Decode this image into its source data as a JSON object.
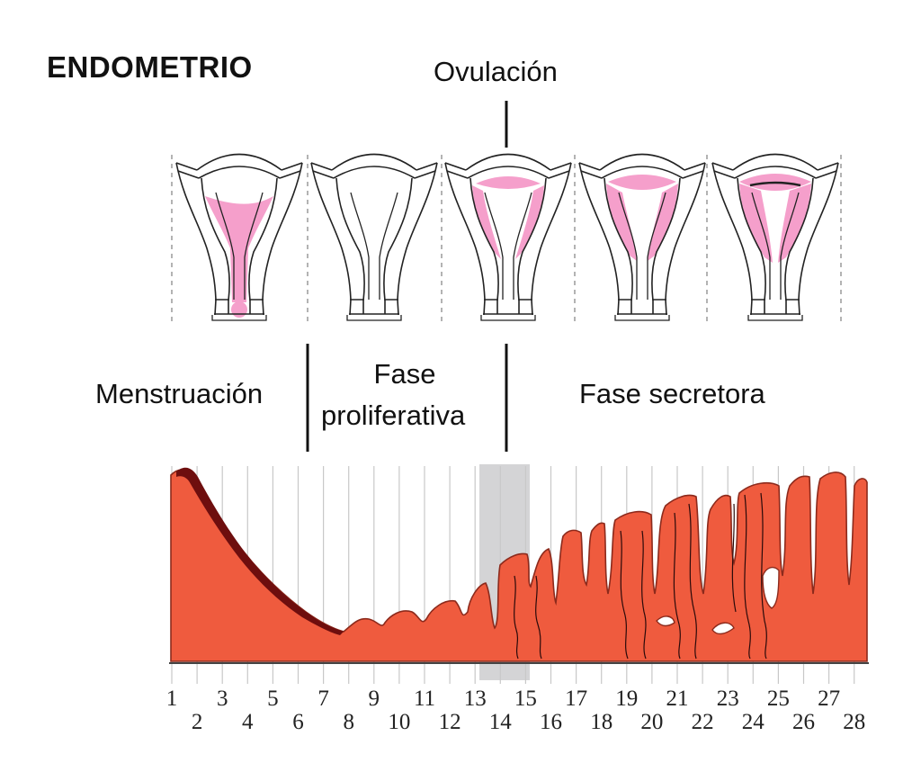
{
  "title": "ENDOMETRIO",
  "ovulation_label": "Ovulación",
  "phases": {
    "menstruation": "Menstruación",
    "proliferative_line1": "Fase",
    "proliferative_line2": "proliferativa",
    "secretory": "Fase secretora"
  },
  "days": [
    "1",
    "2",
    "3",
    "4",
    "5",
    "6",
    "7",
    "8",
    "9",
    "10",
    "11",
    "12",
    "13",
    "14",
    "15",
    "16",
    "17",
    "18",
    "19",
    "20",
    "21",
    "22",
    "23",
    "24",
    "25",
    "26",
    "27",
    "28"
  ],
  "ovulation_days": [
    13,
    14
  ],
  "colors": {
    "endometrium": "#ef5b3e",
    "endometrium_outline": "#8c2a1c",
    "menstrual_blood": "#6e0e0e",
    "uterine_lining_pink": "#f59fcb",
    "ovulation_band": "#d4d4d6",
    "grid_lines": "#c8c8c8"
  },
  "icons": [
    "uterus-menstruation-icon",
    "uterus-early-proliferative-icon",
    "uterus-ovulation-icon",
    "uterus-secretory-icon",
    "uterus-late-secretory-icon"
  ]
}
